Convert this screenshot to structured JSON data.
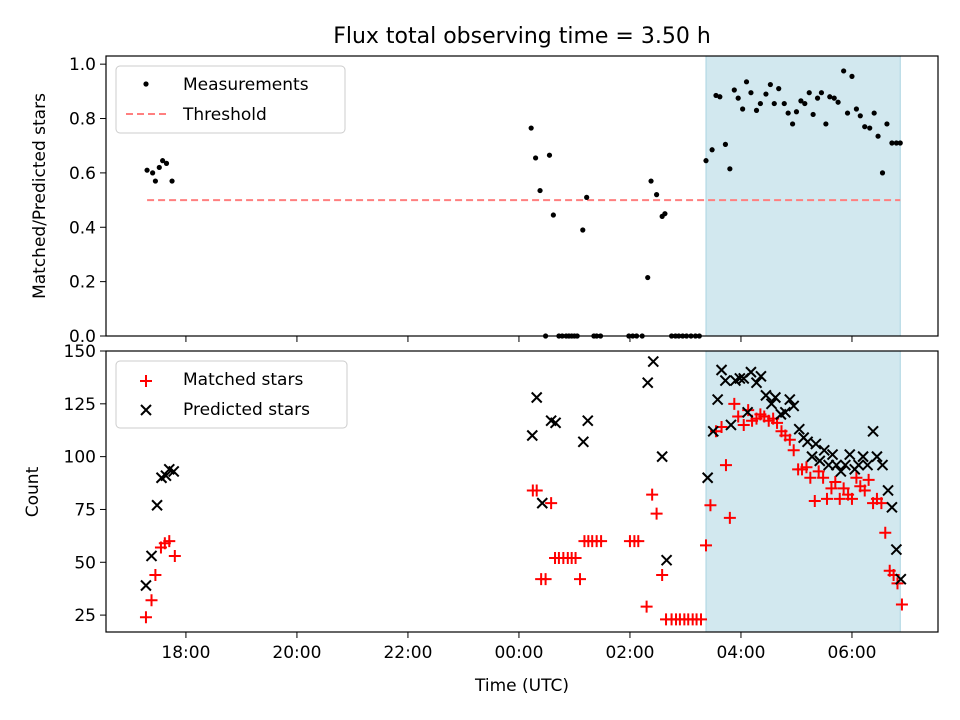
{
  "chart_data": [
    {
      "type": "scatter",
      "title": "Flux total observing time = 3.50 h",
      "xlabel": "",
      "ylabel": "Matched/Predicted stars",
      "ylim": [
        0,
        1.03
      ],
      "yticks": [
        0.0,
        0.2,
        0.4,
        0.6,
        0.8,
        1.0
      ],
      "ytick_labels": [
        "0.0",
        "0.2",
        "0.4",
        "0.6",
        "0.8",
        "1.0"
      ],
      "x_unit": "hours since 00:00 UTC",
      "xlim": [
        -7.44,
        7.55
      ],
      "highlight_span": [
        3.37,
        6.87
      ],
      "highlight_color": "#d2e8ef",
      "grid": false,
      "legend_position": "top-left",
      "series": [
        {
          "name": "Measurements",
          "kind": "points",
          "color": "#000000",
          "x": [
            -6.7,
            -6.6,
            -6.55,
            -6.48,
            -6.42,
            -6.35,
            -6.25,
            0.22,
            0.3,
            0.38,
            0.48,
            0.55,
            0.62,
            0.72,
            0.78,
            0.85,
            0.9,
            0.95,
            1.0,
            1.05,
            1.15,
            1.22,
            1.35,
            1.4,
            1.47,
            1.98,
            2.05,
            2.12,
            2.22,
            2.32,
            2.38,
            2.48,
            2.58,
            2.63,
            2.75,
            2.82,
            2.88,
            2.95,
            3.02,
            3.1,
            3.18,
            3.25,
            3.37,
            3.48,
            3.55,
            3.62,
            3.72,
            3.8,
            3.88,
            3.95,
            4.03,
            4.1,
            4.18,
            4.28,
            4.35,
            4.45,
            4.53,
            4.6,
            4.68,
            4.78,
            4.85,
            4.93,
            5.0,
            5.08,
            5.15,
            5.23,
            5.3,
            5.38,
            5.45,
            5.53,
            5.6,
            5.68,
            5.75,
            5.85,
            5.92,
            6.0,
            6.08,
            6.15,
            6.23,
            6.32,
            6.4,
            6.47,
            6.55,
            6.63,
            6.72,
            6.8,
            6.87
          ],
          "y": [
            0.61,
            0.6,
            0.57,
            0.62,
            0.645,
            0.635,
            0.57,
            0.765,
            0.655,
            0.535,
            0.0,
            0.665,
            0.445,
            0.0,
            0.0,
            0.0,
            0.0,
            0.0,
            0.0,
            0.0,
            0.39,
            0.51,
            0.0,
            0.0,
            0.0,
            0.0,
            0.0,
            0.0,
            0.0,
            0.215,
            0.57,
            0.52,
            0.44,
            0.45,
            0.0,
            0.0,
            0.0,
            0.0,
            0.0,
            0.0,
            0.0,
            0.0,
            0.645,
            0.685,
            0.885,
            0.88,
            0.705,
            0.615,
            0.905,
            0.875,
            0.835,
            0.935,
            0.895,
            0.83,
            0.855,
            0.89,
            0.925,
            0.855,
            0.91,
            0.855,
            0.82,
            0.78,
            0.825,
            0.865,
            0.855,
            0.895,
            0.815,
            0.875,
            0.895,
            0.78,
            0.88,
            0.875,
            0.86,
            0.975,
            0.82,
            0.955,
            0.835,
            0.81,
            0.77,
            0.765,
            0.82,
            0.735,
            0.6,
            0.78,
            0.71,
            0.71,
            0.71
          ]
        },
        {
          "name": "Threshold",
          "kind": "dashed-line",
          "color": "#ff7f7f",
          "x": [
            -6.7,
            6.87
          ],
          "y": [
            0.5,
            0.5
          ]
        }
      ]
    },
    {
      "type": "scatter",
      "title": "",
      "xlabel": "Time (UTC)",
      "ylabel": "Count",
      "ylim": [
        17,
        150
      ],
      "yticks": [
        25,
        50,
        75,
        100,
        125,
        150
      ],
      "ytick_labels": [
        "25",
        "50",
        "75",
        "100",
        "125",
        "150"
      ],
      "x_unit": "hours since 00:00 UTC",
      "xlim": [
        -7.44,
        7.55
      ],
      "xticks": [
        -6,
        -4,
        -2,
        0,
        2,
        4,
        6
      ],
      "xtick_labels": [
        "18:00",
        "20:00",
        "22:00",
        "00:00",
        "02:00",
        "04:00",
        "06:00"
      ],
      "highlight_span": [
        3.37,
        6.87
      ],
      "highlight_color": "#d2e8ef",
      "grid": false,
      "legend_position": "top-left",
      "series": [
        {
          "name": "Matched stars",
          "kind": "plus",
          "color": "#ff0000",
          "x": [
            -6.72,
            -6.62,
            -6.55,
            -6.45,
            -6.38,
            -6.3,
            -6.2,
            0.25,
            0.32,
            0.4,
            0.48,
            0.58,
            0.65,
            0.72,
            0.8,
            0.88,
            0.95,
            1.02,
            1.1,
            1.18,
            1.25,
            1.32,
            1.4,
            1.48,
            2.0,
            2.08,
            2.15,
            2.3,
            2.4,
            2.48,
            2.58,
            2.65,
            2.75,
            2.83,
            2.9,
            2.98,
            3.05,
            3.13,
            3.2,
            3.28,
            3.37,
            3.45,
            3.55,
            3.65,
            3.73,
            3.8,
            3.88,
            3.95,
            4.05,
            4.13,
            4.2,
            4.28,
            4.35,
            4.42,
            4.5,
            4.58,
            4.65,
            4.73,
            4.8,
            4.88,
            4.95,
            5.03,
            5.1,
            5.18,
            5.25,
            5.33,
            5.4,
            5.48,
            5.55,
            5.63,
            5.7,
            5.78,
            5.85,
            5.93,
            6.0,
            6.08,
            6.15,
            6.23,
            6.3,
            6.38,
            6.45,
            6.53,
            6.6,
            6.68,
            6.75,
            6.82,
            6.9
          ],
          "y": [
            24,
            32,
            44,
            57,
            59,
            60,
            53,
            84,
            84,
            42,
            42,
            78,
            52,
            52,
            52,
            52,
            52,
            52,
            42,
            60,
            60,
            60,
            60,
            60,
            60,
            60,
            60,
            29,
            82,
            73,
            44,
            23,
            23,
            23,
            23,
            23,
            23,
            23,
            23,
            23,
            58,
            77,
            112,
            114,
            96,
            71,
            125,
            119,
            115,
            122,
            117,
            118,
            120,
            119,
            117,
            118,
            116,
            112,
            110,
            108,
            103,
            94,
            94,
            95,
            90,
            79,
            93,
            90,
            80,
            85,
            88,
            80,
            85,
            82,
            80,
            90,
            86,
            84,
            89,
            78,
            80,
            78,
            64,
            46,
            44,
            40,
            30
          ]
        },
        {
          "name": "Predicted stars",
          "kind": "cross",
          "color": "#000000",
          "x": [
            -6.72,
            -6.62,
            -6.52,
            -6.44,
            -6.36,
            -6.3,
            -6.22,
            0.24,
            0.32,
            0.42,
            0.58,
            0.66,
            1.16,
            1.24,
            2.32,
            2.42,
            2.58,
            2.66,
            3.4,
            3.5,
            3.58,
            3.65,
            3.72,
            3.82,
            3.9,
            3.98,
            4.05,
            4.12,
            4.18,
            4.28,
            4.36,
            4.45,
            4.55,
            4.62,
            4.72,
            4.8,
            4.88,
            4.95,
            5.05,
            5.13,
            5.2,
            5.28,
            5.35,
            5.42,
            5.5,
            5.58,
            5.65,
            5.72,
            5.8,
            5.88,
            5.96,
            6.05,
            6.12,
            6.2,
            6.28,
            6.38,
            6.45,
            6.55,
            6.65,
            6.72,
            6.8,
            6.88
          ],
          "y": [
            39,
            53,
            77,
            90,
            91,
            94,
            93,
            110,
            128,
            78,
            117,
            116,
            107,
            117,
            135,
            145,
            100,
            51,
            90,
            112,
            127,
            141,
            136,
            115,
            136,
            137,
            137,
            121,
            140,
            135,
            138,
            129,
            125,
            128,
            120,
            121,
            127,
            124,
            113,
            109,
            107,
            100,
            106,
            98,
            103,
            96,
            101,
            96,
            93,
            96,
            101,
            94,
            96,
            100,
            96,
            112,
            100,
            96,
            84,
            76,
            56,
            42
          ]
        }
      ]
    }
  ]
}
